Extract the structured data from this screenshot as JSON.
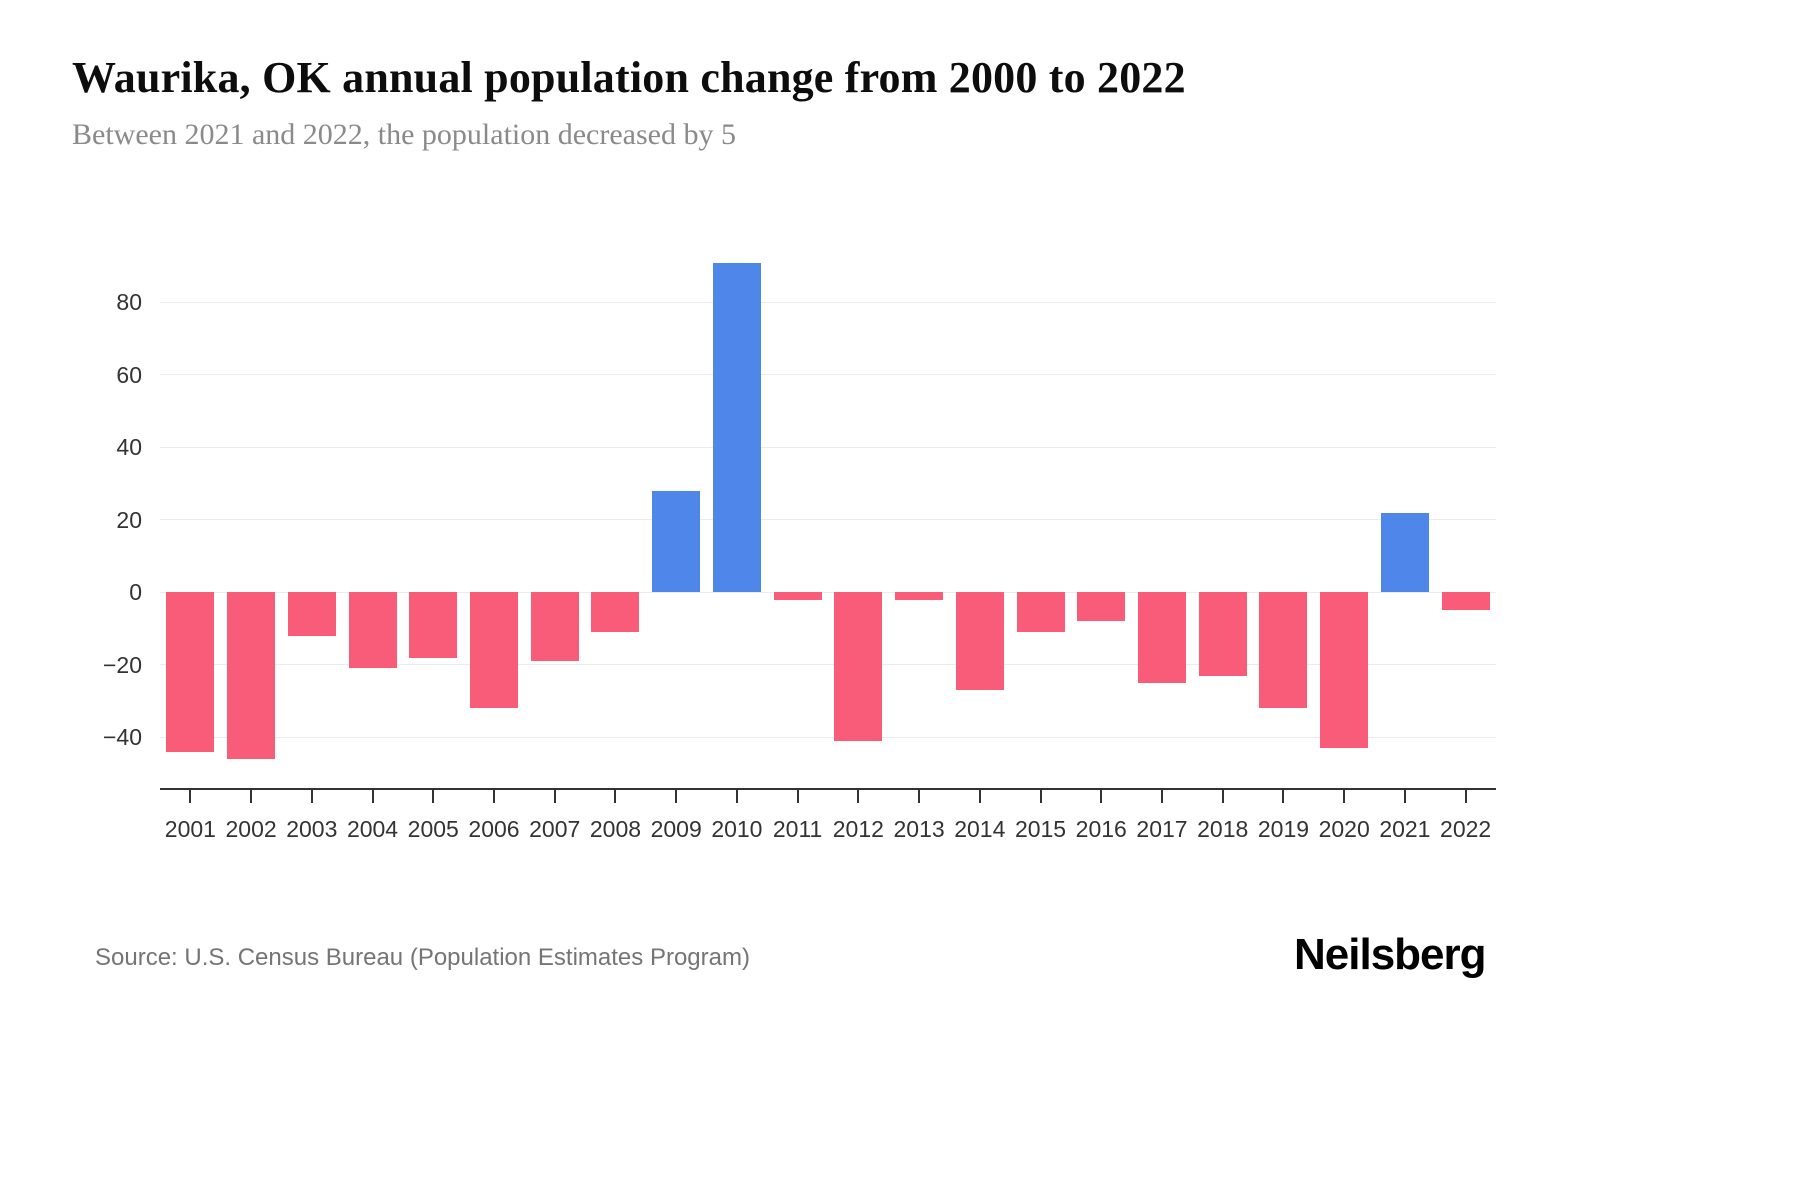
{
  "header": {
    "title": "Waurika, OK annual population change from 2000 to 2022",
    "subtitle": "Between 2021 and 2022, the population decreased by 5"
  },
  "footer": {
    "source": "Source: U.S. Census Bureau (Population Estimates Program)",
    "logo": "Neilsberg"
  },
  "chart_data": {
    "type": "bar",
    "title": "Waurika, OK annual population change from 2000 to 2022",
    "subtitle": "Between 2021 and 2022, the population decreased by 5",
    "categories": [
      "2001",
      "2002",
      "2003",
      "2004",
      "2005",
      "2006",
      "2007",
      "2008",
      "2009",
      "2010",
      "2011",
      "2012",
      "2013",
      "2014",
      "2015",
      "2016",
      "2017",
      "2018",
      "2019",
      "2020",
      "2021",
      "2022"
    ],
    "values": [
      -44,
      -46,
      -12,
      -21,
      -18,
      -32,
      -19,
      -11,
      28,
      91,
      -2,
      -41,
      -2,
      -27,
      -11,
      -8,
      -25,
      -23,
      -32,
      -43,
      22,
      -5
    ],
    "xlabel": "",
    "ylabel": "",
    "yticks": [
      -40,
      -20,
      0,
      20,
      40,
      60,
      80
    ],
    "ylim": [
      -54,
      100
    ],
    "grid": true,
    "legend": "none",
    "colors": {
      "positive": "#4e87e9",
      "negative": "#f85c78",
      "gridline": "#ececec",
      "axis": "#333333",
      "tick_label": "#333333"
    }
  }
}
